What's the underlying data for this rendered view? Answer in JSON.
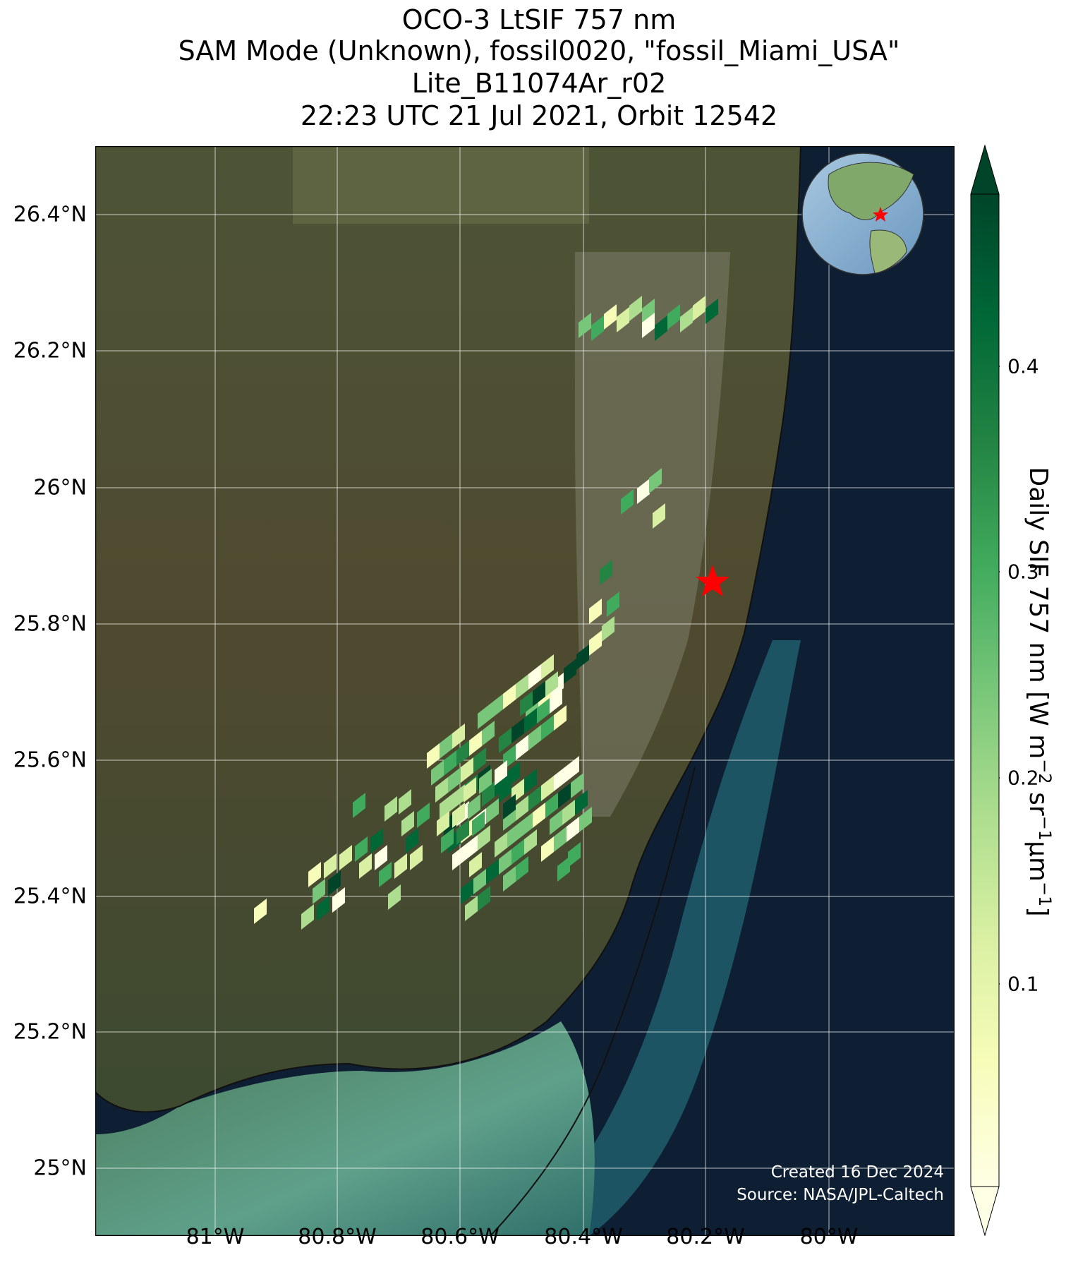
{
  "title": {
    "line1": "OCO-3 LtSIF 757 nm",
    "line2": "SAM Mode (Unknown), fossil0020, \"fossil_Miami_USA\"",
    "line3": "Lite_B11074Ar_r02",
    "line4": "22:23 UTC 21 Jul 2021, Orbit 12542"
  },
  "axes": {
    "lat_labels": [
      "26.4°N",
      "26.2°N",
      "26°N",
      "25.8°N",
      "25.6°N",
      "25.4°N",
      "25.2°N",
      "25°N"
    ],
    "lon_labels": [
      "81°W",
      "80.8°W",
      "80.6°W",
      "80.4°W",
      "80.2°W",
      "80°W"
    ]
  },
  "map": {
    "target_marker": "red-star",
    "target_color": "#ff0000",
    "inset": "globe-locator"
  },
  "credits": {
    "created": "Created 16 Dec 2024",
    "source": "Source: NASA/JPL-Caltech"
  },
  "colorbar": {
    "label_main": "Daily SIF 757 nm [W m",
    "label_exp1": "−2",
    "label_mid": " sr",
    "label_exp2": "−1",
    "label_mid2": "μm",
    "label_exp3": "−1",
    "label_end": "]",
    "ticks": [
      "0.4",
      "0.3",
      "0.2",
      "0.1"
    ],
    "colormap": "YlGn",
    "color_low": "#ffffe5",
    "color_high": "#004529"
  },
  "colors": {
    "land": "#4a4a2a",
    "ocean": "#0e1f33",
    "shallow_water": "#3e8a7a"
  }
}
